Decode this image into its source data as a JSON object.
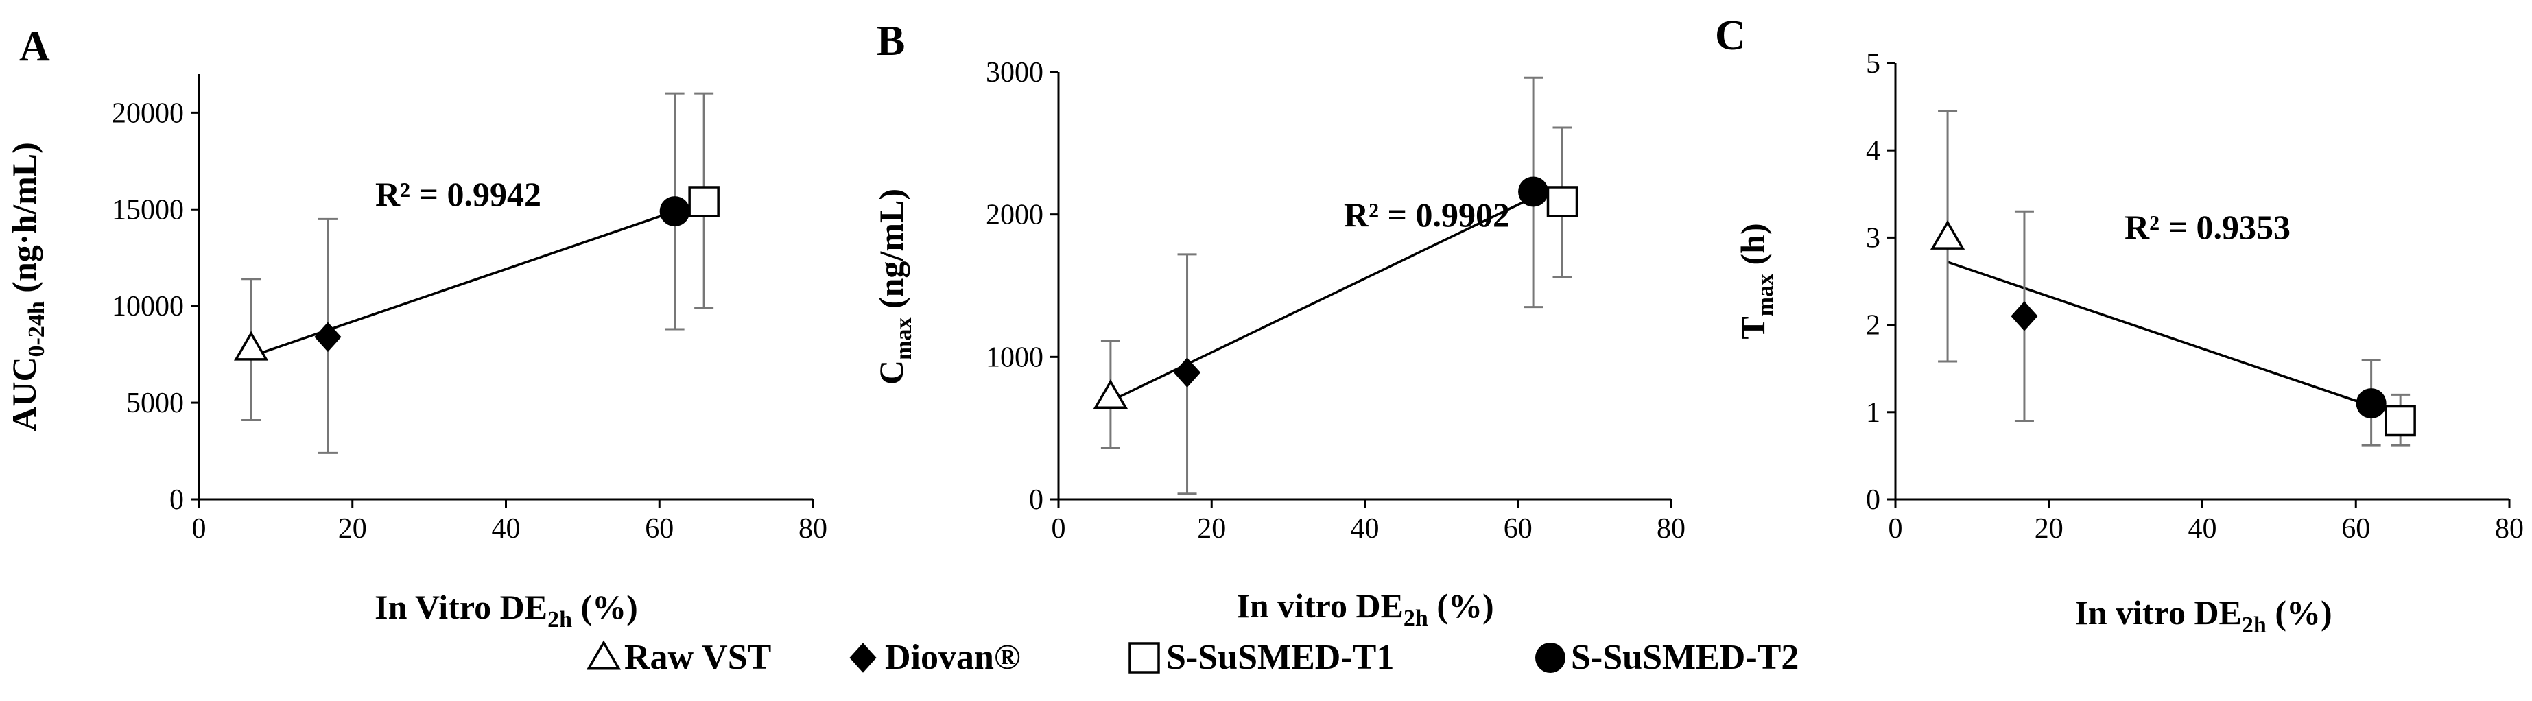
{
  "colors": {
    "axis": "#000000",
    "errorbar": "#777777",
    "fill_dark": "#000000",
    "fill_open": "#ffffff"
  },
  "legend": [
    {
      "label": "Raw VST",
      "marker": "triangle-open"
    },
    {
      "label": "Diovan®",
      "marker": "diamond-filled"
    },
    {
      "label": "S-SuSMED-T1",
      "marker": "square-open"
    },
    {
      "label": "S-SuSMED-T2",
      "marker": "circle-filled"
    }
  ],
  "chart_data": [
    {
      "type": "scatter",
      "panel": "A",
      "ylabel_main": "AUC",
      "ylabel_sub": "0-24h",
      "ylabel_suffix": " (ng·h/mL)",
      "xlabel_main": "In Vitro DE",
      "xlabel_sub": "2h",
      "xlabel_suffix": " (%)",
      "xlim": [
        0,
        80
      ],
      "ylim": [
        0,
        22000
      ],
      "xticks": [
        0,
        20,
        40,
        60,
        80
      ],
      "yticks": [
        0,
        5000,
        10000,
        15000,
        20000
      ],
      "r2": "R² = 0.9942",
      "trendline": {
        "x": [
          6.8,
          62
        ],
        "y": [
          7400,
          14900
        ]
      },
      "points": [
        {
          "series": "Raw VST",
          "x": 6.8,
          "y": 7800,
          "err_lo": 4100,
          "err_hi": 11400,
          "marker": "triangle-open"
        },
        {
          "series": "Diovan®",
          "x": 16.8,
          "y": 8400,
          "err_lo": 2400,
          "err_hi": 14500,
          "marker": "diamond-filled"
        },
        {
          "series": "S-SuSMED-T2",
          "x": 62,
          "y": 14900,
          "err_lo": 8800,
          "err_hi": 21000,
          "marker": "circle-filled"
        },
        {
          "series": "S-SuSMED-T1",
          "x": 65.8,
          "y": 15400,
          "err_lo": 9900,
          "err_hi": 21000,
          "marker": "square-open"
        }
      ]
    },
    {
      "type": "scatter",
      "panel": "B",
      "ylabel_main": "C",
      "ylabel_sub": "max",
      "ylabel_suffix": " (ng/mL)",
      "xlabel_main": "In vitro DE",
      "xlabel_sub": "2h",
      "xlabel_suffix": " (%)",
      "xlim": [
        0,
        80
      ],
      "ylim": [
        0,
        3000
      ],
      "xticks": [
        0,
        20,
        40,
        60,
        80
      ],
      "yticks": [
        0,
        1000,
        2000,
        3000
      ],
      "r2": "R² = 0.9902",
      "trendline": {
        "x": [
          6.8,
          62
        ],
        "y": [
          690,
          2120
        ]
      },
      "points": [
        {
          "series": "Raw VST",
          "x": 6.8,
          "y": 720,
          "err_lo": 360,
          "err_hi": 1110,
          "marker": "triangle-open"
        },
        {
          "series": "Diovan®",
          "x": 16.8,
          "y": 890,
          "err_lo": 40,
          "err_hi": 1720,
          "marker": "diamond-filled"
        },
        {
          "series": "S-SuSMED-T2",
          "x": 62,
          "y": 2160,
          "err_lo": 1350,
          "err_hi": 2960,
          "marker": "circle-filled"
        },
        {
          "series": "S-SuSMED-T1",
          "x": 65.8,
          "y": 2090,
          "err_lo": 1560,
          "err_hi": 2610,
          "marker": "square-open"
        }
      ]
    },
    {
      "type": "scatter",
      "panel": "C",
      "ylabel_main": "T",
      "ylabel_sub": "max",
      "ylabel_suffix": " (h)",
      "xlabel_main": "In vitro DE",
      "xlabel_sub": "2h",
      "xlabel_suffix": " (%)",
      "xlim": [
        0,
        80
      ],
      "ylim": [
        0,
        5
      ],
      "xticks": [
        0,
        20,
        40,
        60,
        80
      ],
      "yticks": [
        0,
        1,
        2,
        3,
        4,
        5
      ],
      "r2": "R² = 0.9353",
      "trendline": {
        "x": [
          6.8,
          62
        ],
        "y": [
          2.72,
          1.07
        ]
      },
      "points": [
        {
          "series": "Raw VST",
          "x": 6.8,
          "y": 3.0,
          "err_lo": 1.58,
          "err_hi": 4.45,
          "marker": "triangle-open"
        },
        {
          "series": "Diovan®",
          "x": 16.8,
          "y": 2.1,
          "err_lo": 0.9,
          "err_hi": 3.3,
          "marker": "diamond-filled"
        },
        {
          "series": "S-SuSMED-T2",
          "x": 62,
          "y": 1.1,
          "err_lo": 0.62,
          "err_hi": 1.6,
          "marker": "circle-filled"
        },
        {
          "series": "S-SuSMED-T1",
          "x": 65.8,
          "y": 0.9,
          "err_lo": 0.62,
          "err_hi": 1.2,
          "marker": "square-open"
        }
      ]
    }
  ]
}
